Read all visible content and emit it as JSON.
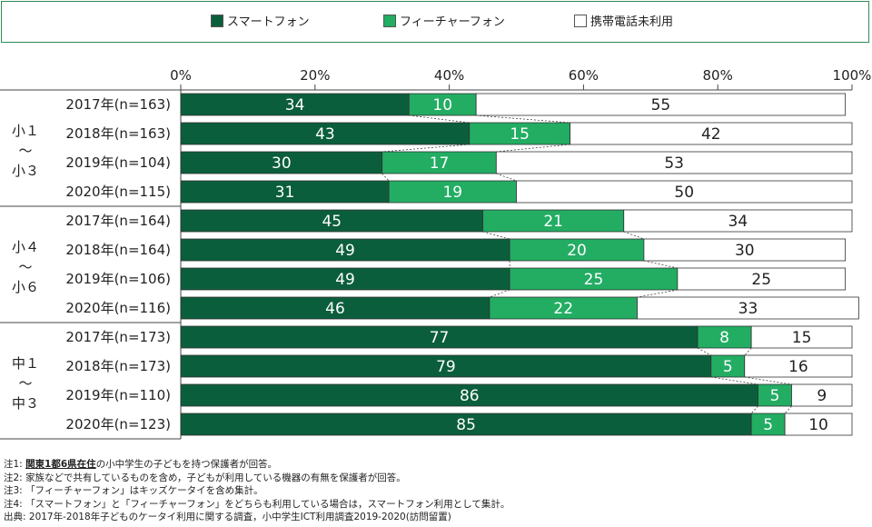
{
  "legend": {
    "items": [
      {
        "label": "スマートフォン",
        "color": "#0b5e3c"
      },
      {
        "label": "フィーチャーフォン",
        "color": "#22ad63"
      },
      {
        "label": "携帯電話未利用",
        "color": "#ffffff"
      }
    ]
  },
  "chart_data": {
    "type": "bar",
    "orientation": "horizontal",
    "stacked": true,
    "xlim": [
      0,
      100
    ],
    "x_ticks": [
      "0%",
      "20%",
      "40%",
      "60%",
      "80%",
      "100%"
    ],
    "groups": [
      {
        "label": [
          "小１",
          "〜",
          "小３"
        ],
        "start": 0,
        "end": 3
      },
      {
        "label": [
          "小４",
          "〜",
          "小６"
        ],
        "start": 4,
        "end": 7
      },
      {
        "label": [
          "中１",
          "〜",
          "中３"
        ],
        "start": 8,
        "end": 11
      }
    ],
    "categories": [
      "2017年(n=163)",
      "2018年(n=163)",
      "2019年(n=104)",
      "2020年(n=115)",
      "2017年(n=164)",
      "2018年(n=164)",
      "2019年(n=106)",
      "2020年(n=116)",
      "2017年(n=173)",
      "2018年(n=173)",
      "2019年(n=110)",
      "2020年(n=123)"
    ],
    "series": [
      {
        "name": "スマートフォン",
        "color": "#0b5e3c",
        "label_color": "#ffffff",
        "values": [
          34,
          43,
          30,
          31,
          45,
          49,
          49,
          46,
          77,
          79,
          86,
          85
        ]
      },
      {
        "name": "フィーチャーフォン",
        "color": "#22ad63",
        "label_color": "#ffffff",
        "values": [
          10,
          15,
          17,
          19,
          21,
          20,
          25,
          22,
          8,
          5,
          5,
          5
        ]
      },
      {
        "name": "携帯電話未利用",
        "color": "#ffffff",
        "label_color": "#222222",
        "values": [
          55,
          42,
          53,
          50,
          34,
          30,
          25,
          33,
          15,
          16,
          9,
          10
        ]
      }
    ]
  },
  "notes": [
    {
      "prefix": "注1: ",
      "highlight": "関東1都6県在住",
      "text": "の小中学生の子どもを持つ保護者が回答。"
    },
    {
      "prefix": "注2: ",
      "highlight": "",
      "text": "家族などで共有しているものを含め，子どもが利用している機器の有無を保護者が回答。"
    },
    {
      "prefix": "注3: ",
      "highlight": "",
      "text": "「フィーチャーフォン」はキッズケータイを含め集計。"
    },
    {
      "prefix": "注4: ",
      "highlight": "",
      "text": "「スマートフォン」と「フィーチャーフォン」をどちらも利用している場合は，スマートフォン利用として集計。"
    },
    {
      "prefix": "出典: ",
      "highlight": "",
      "text": "2017年-2018年子どものケータイ利用に関する調査，小中学生ICT利用調査2019-2020(訪問留置)"
    }
  ]
}
